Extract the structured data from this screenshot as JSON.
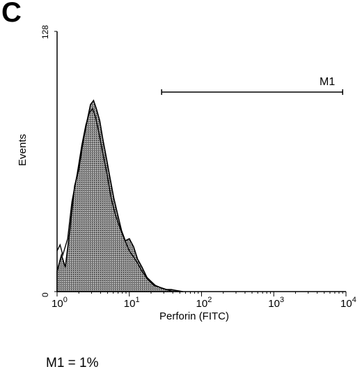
{
  "panel_label": "C",
  "summary_text": "M1 = 1%",
  "chart_data": {
    "type": "histogram",
    "title": "",
    "xlabel": "Perforin (FITC)",
    "ylabel": "Events",
    "x_scale": "log",
    "xlim": [
      1,
      10000
    ],
    "ylim": [
      0,
      128
    ],
    "x_ticks": [
      {
        "value": 1,
        "base": "10",
        "exp": "0"
      },
      {
        "value": 10,
        "base": "10",
        "exp": "1"
      },
      {
        "value": 100,
        "base": "10",
        "exp": "2"
      },
      {
        "value": 1000,
        "base": "10",
        "exp": "3"
      },
      {
        "value": 10000,
        "base": "10",
        "exp": "4"
      }
    ],
    "y_ticks": [
      {
        "value": 0,
        "label": "0"
      },
      {
        "value": 128,
        "label": "128"
      }
    ],
    "gate": {
      "name": "M1",
      "x_start": 28,
      "x_end": 9000
    },
    "series": [
      {
        "style": "filled",
        "x": [
          1.0,
          1.15,
          1.3,
          1.5,
          1.75,
          2.0,
          2.3,
          2.6,
          2.9,
          3.2,
          3.5,
          3.9,
          4.3,
          4.8,
          5.4,
          6.1,
          6.9,
          7.8,
          8.8,
          10,
          11.5,
          13,
          15,
          17.5,
          20,
          23,
          27,
          32,
          38,
          45,
          55
        ],
        "y": [
          10,
          18,
          12,
          30,
          52,
          60,
          74,
          84,
          92,
          94,
          90,
          84,
          75,
          66,
          56,
          46,
          38,
          30,
          25,
          26,
          22,
          16,
          12,
          7,
          5,
          3,
          2,
          1,
          1,
          0.5,
          0
        ]
      },
      {
        "style": "outline",
        "x": [
          1.0,
          1.1,
          1.2,
          1.4,
          1.6,
          1.9,
          2.2,
          2.5,
          2.8,
          3.1,
          3.4,
          3.8,
          4.3,
          4.9,
          5.6,
          6.4,
          7.3,
          8.5,
          10,
          11.5,
          13,
          15,
          18,
          22,
          27,
          33,
          40
        ],
        "y": [
          20,
          23,
          18,
          26,
          44,
          58,
          72,
          82,
          88,
          90,
          86,
          78,
          68,
          58,
          46,
          38,
          32,
          26,
          20,
          17,
          14,
          10,
          6,
          3,
          2,
          1,
          0
        ]
      }
    ]
  }
}
